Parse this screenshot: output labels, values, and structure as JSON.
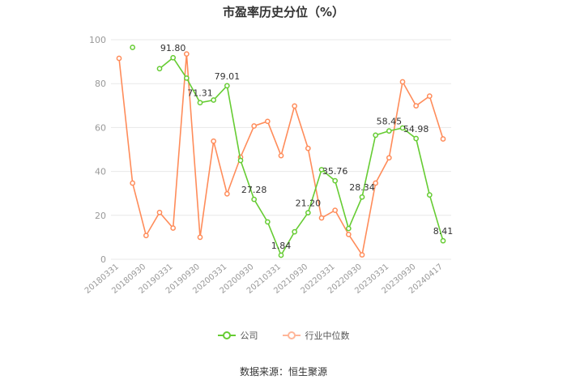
{
  "title": "市盈率历史分位（%）",
  "source": "数据来源：恒生聚源",
  "legend": {
    "company": "公司",
    "industry": "行业中位数"
  },
  "colors": {
    "company": "#66cc33",
    "industry": "#ff8c5a",
    "grid": "#e8e8e8",
    "axis_text": "#999999",
    "label_text": "#333333"
  },
  "chart_data": {
    "type": "line",
    "ylim": [
      0,
      100
    ],
    "yticks": [
      0,
      20,
      40,
      60,
      80,
      100
    ],
    "xticks": [
      "20180331",
      "20180930",
      "20190331",
      "20190930",
      "20200331",
      "20200930",
      "20210331",
      "20210930",
      "20220331",
      "20220930",
      "20230331",
      "20230930",
      "20240417"
    ],
    "series": [
      {
        "name": "公司",
        "values": [
          null,
          96.5,
          null,
          86.8,
          91.8,
          82.5,
          71.31,
          72.5,
          79.01,
          45.0,
          27.28,
          17.0,
          1.84,
          12.5,
          21.2,
          40.8,
          35.76,
          14.0,
          28.34,
          56.5,
          58.45,
          59.8,
          54.98,
          29.3,
          8.41
        ],
        "labels": [
          null,
          null,
          null,
          null,
          "91.80",
          null,
          "71.31",
          null,
          "79.01",
          null,
          "27.28",
          null,
          "1.84",
          null,
          "21.20",
          null,
          "35.76",
          null,
          "28.34",
          null,
          "58.45",
          null,
          "54.98",
          null,
          "8.41"
        ]
      },
      {
        "name": "行业中位数",
        "values": [
          91.5,
          34.7,
          10.8,
          21.3,
          14.2,
          93.5,
          10.0,
          53.8,
          29.8,
          46.5,
          60.7,
          62.8,
          47.2,
          69.8,
          50.5,
          18.8,
          22.3,
          11.3,
          2.0,
          34.7,
          46.2,
          80.8,
          69.9,
          74.3,
          54.8
        ]
      }
    ]
  }
}
